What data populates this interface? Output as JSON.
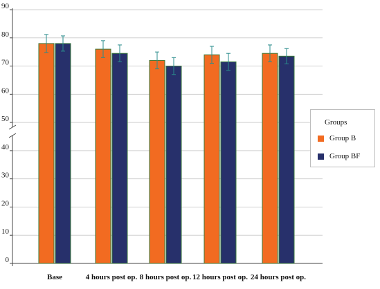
{
  "chart_data": {
    "type": "bar",
    "categories": [
      "Base",
      "4 hours post op.",
      "8 hours post op.",
      "12 hours post op.",
      "24 hours post op."
    ],
    "series": [
      {
        "name": "Group B",
        "values": [
          78,
          76,
          72,
          74,
          74.5
        ],
        "errors": [
          3.2,
          3.0,
          3.0,
          3.0,
          3.0
        ],
        "color": "#f26b21"
      },
      {
        "name": "Group BF",
        "values": [
          78,
          74.5,
          70,
          71.5,
          73.5
        ],
        "errors": [
          2.7,
          3.0,
          3.0,
          3.0,
          2.7
        ],
        "color": "#27306b"
      }
    ],
    "ylim": [
      0,
      90
    ],
    "yticks": [
      "0",
      "10",
      "20",
      "30",
      "40",
      "50",
      "60",
      "70",
      "80",
      "90"
    ],
    "grid": true,
    "legend": {
      "title": "Groups",
      "placement": "right"
    },
    "axis_break": true,
    "errorbar_color": "#2a8c8c"
  }
}
